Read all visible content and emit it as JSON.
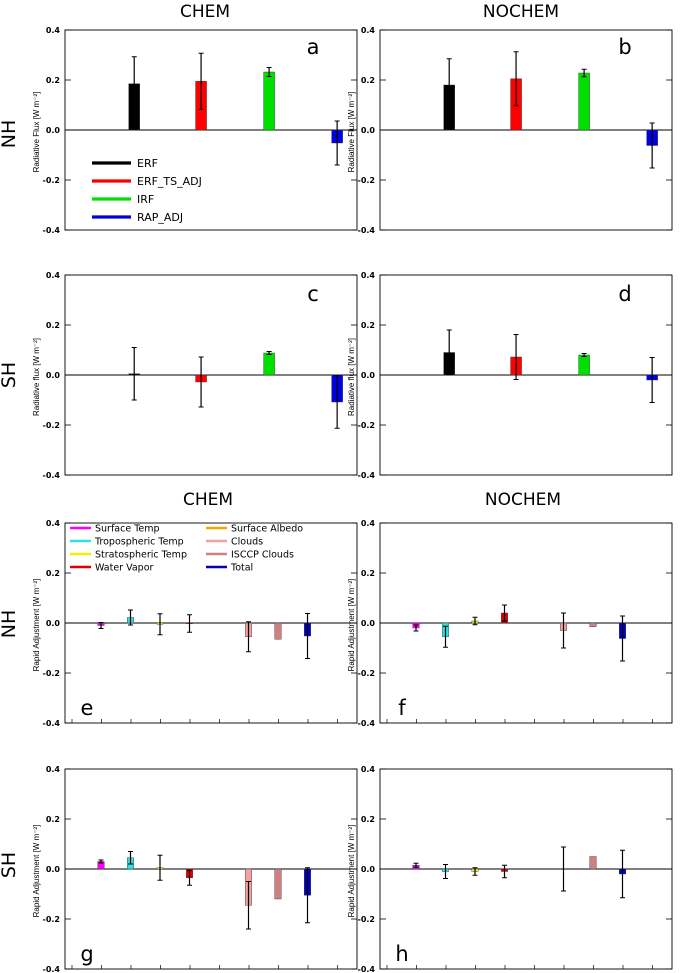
{
  "figure": {
    "top_headers": [
      "CHEM",
      "NOCHEM"
    ],
    "mid_headers": [
      "CHEM",
      "NOCHEM"
    ],
    "row_labels": [
      "NH",
      "SH",
      "NH",
      "SH"
    ]
  },
  "legends": {
    "flux": [
      {
        "label": "ERF",
        "color": "#000000"
      },
      {
        "label": "ERF_TS_ADJ",
        "color": "#ff0000"
      },
      {
        "label": "IRF",
        "color": "#00e000"
      },
      {
        "label": "RAP_ADJ",
        "color": "#0000e0"
      }
    ],
    "adjustment": [
      {
        "label": "Surface Temp",
        "color": "#ff00ff"
      },
      {
        "label": "Surface Albedo",
        "color": "#f0a800"
      },
      {
        "label": "Tropospheric Temp",
        "color": "#30e0e0"
      },
      {
        "label": "Clouds",
        "color": "#f4a0a0"
      },
      {
        "label": "Stratospheric Temp",
        "color": "#f0f000"
      },
      {
        "label": "ISCCP Clouds",
        "color": "#d08080"
      },
      {
        "label": "Water Vapor",
        "color": "#e00000"
      },
      {
        "label": "Total",
        "color": "#0000c0"
      }
    ]
  },
  "chart_data": [
    {
      "type": "bar",
      "panel": "a",
      "column": "CHEM",
      "hemisphere": "NH",
      "ylabel": "Radiative Flux [W m⁻²]",
      "ylim": [
        -0.4,
        0.4
      ],
      "yticks": [
        "0.4",
        "0.2",
        "0.0",
        "-0.2",
        "-0.4"
      ],
      "categories": [
        "ERF",
        "ERF_TS_ADJ",
        "IRF",
        "RAP_ADJ"
      ],
      "colors": [
        "#000000",
        "#ff0000",
        "#00e000",
        "#0000e0"
      ],
      "values": [
        0.185,
        0.195,
        0.232,
        -0.052
      ],
      "errors": [
        0.108,
        0.112,
        0.018,
        0.088
      ],
      "legend": "flux"
    },
    {
      "type": "bar",
      "panel": "b",
      "column": "NOCHEM",
      "hemisphere": "NH",
      "ylabel": "Radiative Flux [W m⁻²]",
      "ylim": [
        -0.4,
        0.4
      ],
      "yticks": [
        "0.4",
        "0.2",
        "0.0",
        "-0.2",
        "-0.4"
      ],
      "categories": [
        "ERF",
        "ERF_TS_ADJ",
        "IRF",
        "RAP_ADJ"
      ],
      "colors": [
        "#000000",
        "#ff0000",
        "#00e000",
        "#0000e0"
      ],
      "values": [
        0.18,
        0.205,
        0.228,
        -0.062
      ],
      "errors": [
        0.105,
        0.108,
        0.015,
        0.09
      ]
    },
    {
      "type": "bar",
      "panel": "c",
      "column": "CHEM",
      "hemisphere": "SH",
      "ylabel": "Radiative flux [W m⁻²]",
      "ylim": [
        -0.4,
        0.4
      ],
      "yticks": [
        "0.4",
        "0.2",
        "0.0",
        "-0.2",
        "-0.4"
      ],
      "categories": [
        "ERF",
        "ERF_TS_ADJ",
        "IRF",
        "RAP_ADJ"
      ],
      "colors": [
        "#000000",
        "#ff0000",
        "#00e000",
        "#0000e0"
      ],
      "values": [
        0.005,
        -0.028,
        0.088,
        -0.108
      ],
      "errors": [
        0.105,
        0.1,
        0.006,
        0.105
      ]
    },
    {
      "type": "bar",
      "panel": "d",
      "column": "NOCHEM",
      "hemisphere": "SH",
      "ylabel": "Radiative flux [W m⁻²]",
      "ylim": [
        -0.4,
        0.4
      ],
      "yticks": [
        "0.4",
        "0.2",
        "0.0",
        "-0.2",
        "-0.4"
      ],
      "categories": [
        "ERF",
        "ERF_TS_ADJ",
        "IRF",
        "RAP_ADJ"
      ],
      "colors": [
        "#000000",
        "#ff0000",
        "#00e000",
        "#0000e0"
      ],
      "values": [
        0.09,
        0.072,
        0.08,
        -0.02
      ],
      "errors": [
        0.09,
        0.09,
        0.006,
        0.09
      ]
    },
    {
      "type": "bar",
      "panel": "e",
      "column": "CHEM",
      "hemisphere": "NH",
      "ylabel": "Rapid Adjustment [W m⁻²]",
      "ylim": [
        -0.4,
        0.4
      ],
      "yticks": [
        "0.4",
        "0.2",
        "0.0",
        "-0.2",
        "-0.4"
      ],
      "categories": [
        "Surface Temp",
        "Tropospheric Temp",
        "Stratospheric Temp",
        "Water Vapor",
        "Surface Albedo",
        "Clouds",
        "ISCCP Clouds",
        "Total"
      ],
      "colors": [
        "#ff00ff",
        "#30e0e0",
        "#f0f000",
        "#e00000",
        "#f0a800",
        "#f4a0a0",
        "#d08080",
        "#0000c0"
      ],
      "values": [
        -0.01,
        0.022,
        -0.005,
        -0.002,
        0.0,
        -0.055,
        -0.065,
        -0.052
      ],
      "errors": [
        0.012,
        0.03,
        0.042,
        0.035,
        0.0,
        0.06,
        0.0,
        0.09
      ],
      "legend": "adjustment"
    },
    {
      "type": "bar",
      "panel": "f",
      "column": "NOCHEM",
      "hemisphere": "NH",
      "ylabel": "Rapid Adjustment [W m⁻²]",
      "ylim": [
        -0.4,
        0.4
      ],
      "yticks": [
        "0.4",
        "0.2",
        "0.0",
        "-0.2",
        "-0.4"
      ],
      "categories": [
        "Surface Temp",
        "Tropospheric Temp",
        "Stratospheric Temp",
        "Water Vapor",
        "Surface Albedo",
        "Clouds",
        "ISCCP Clouds",
        "Total"
      ],
      "colors": [
        "#ff00ff",
        "#30e0e0",
        "#f0f000",
        "#e00000",
        "#f0a800",
        "#f4a0a0",
        "#d08080",
        "#0000c0"
      ],
      "values": [
        -0.02,
        -0.055,
        0.008,
        0.04,
        0.0,
        -0.03,
        -0.015,
        -0.062
      ],
      "errors": [
        0.012,
        0.042,
        0.015,
        0.032,
        0.0,
        0.07,
        0.0,
        0.09
      ]
    },
    {
      "type": "bar",
      "panel": "g",
      "column": "CHEM",
      "hemisphere": "SH",
      "ylabel": "Rapid Adjustment [W m⁻²]",
      "ylim": [
        -0.4,
        0.4
      ],
      "yticks": [
        "0.4",
        "0.2",
        "0.0",
        "-0.2",
        "-0.4"
      ],
      "categories": [
        "Surface Temp",
        "Tropospheric Temp",
        "Stratospheric Temp",
        "Water Vapor",
        "Surface Albedo",
        "Clouds",
        "ISCCP Clouds",
        "Total"
      ],
      "colors": [
        "#ff00ff",
        "#30e0e0",
        "#f0f000",
        "#e00000",
        "#f0a800",
        "#f4a0a0",
        "#d08080",
        "#0000c0"
      ],
      "values": [
        0.03,
        0.045,
        0.005,
        -0.035,
        0.0,
        -0.145,
        -0.12,
        -0.105
      ],
      "errors": [
        0.006,
        0.025,
        0.05,
        0.03,
        0.0,
        0.095,
        0.0,
        0.11
      ]
    },
    {
      "type": "bar",
      "panel": "h",
      "column": "NOCHEM",
      "hemisphere": "SH",
      "ylabel": "Rapid Adjustment [W m⁻²]",
      "ylim": [
        -0.4,
        0.4
      ],
      "yticks": [
        "0.4",
        "0.2",
        "0.0",
        "-0.2",
        "-0.4"
      ],
      "categories": [
        "Surface Temp",
        "Tropospheric Temp",
        "Stratospheric Temp",
        "Water Vapor",
        "Surface Albedo",
        "Clouds",
        "ISCCP Clouds",
        "Total"
      ],
      "colors": [
        "#ff00ff",
        "#30e0e0",
        "#f0f000",
        "#e00000",
        "#f0a800",
        "#f4a0a0",
        "#d08080",
        "#0000c0"
      ],
      "values": [
        0.015,
        -0.01,
        -0.01,
        -0.01,
        0.0,
        0.0,
        0.05,
        -0.02
      ],
      "errors": [
        0.008,
        0.028,
        0.015,
        0.025,
        0.0,
        0.088,
        0.0,
        0.095
      ]
    }
  ]
}
